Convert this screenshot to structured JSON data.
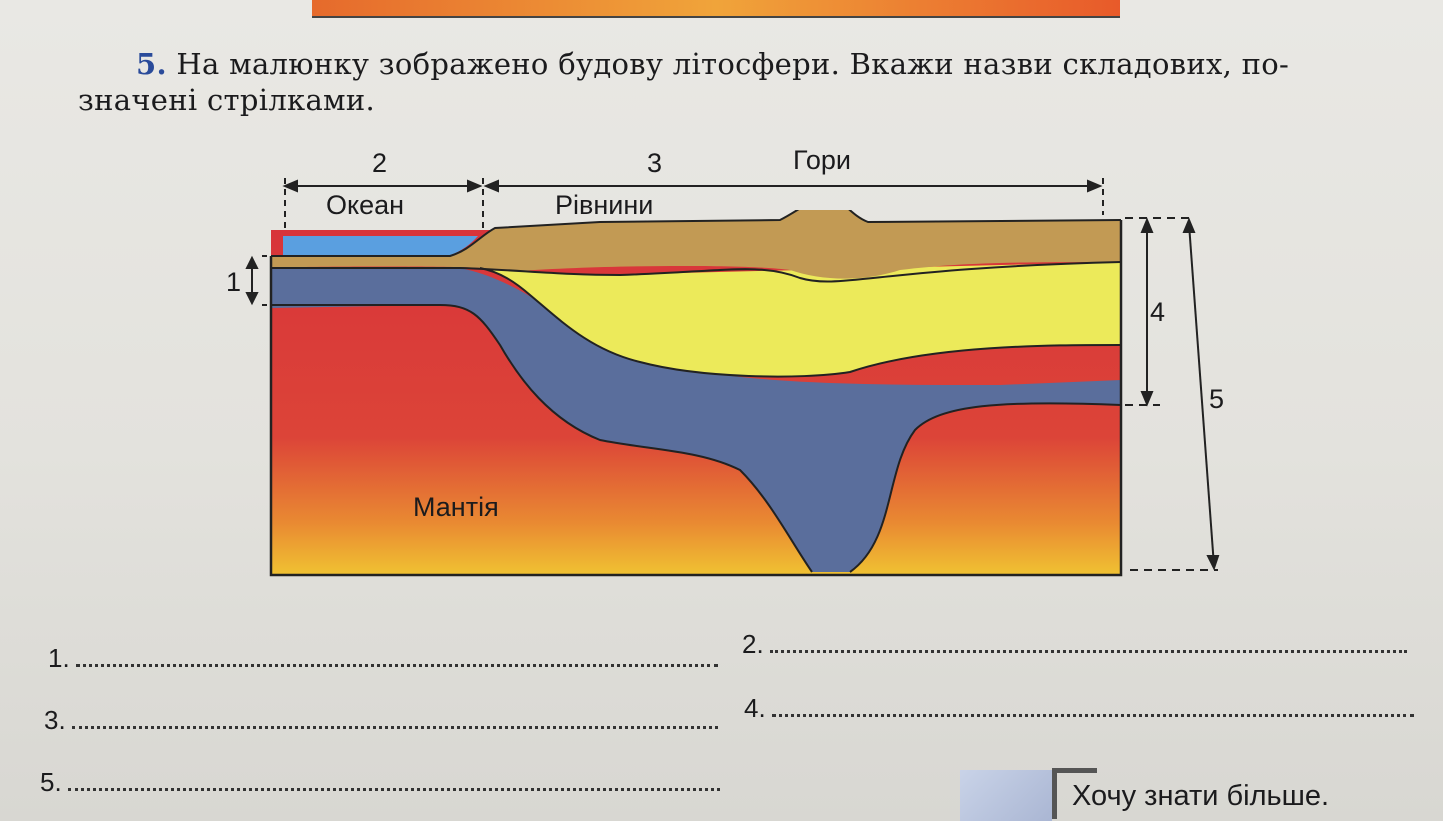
{
  "task": {
    "number": "5.",
    "line1": "На малюнку зображено будову літосфери. Вкажи назви складових, по-",
    "line2": "значені стрілками."
  },
  "diagram": {
    "label_2": "2",
    "label_3": "3",
    "label_mountains": "Гори",
    "label_ocean": "Океан",
    "label_plains": "Рівнини",
    "label_1": "1",
    "label_4": "4",
    "label_5": "5",
    "label_mantle": "Мантія"
  },
  "answers": [
    {
      "label": "1."
    },
    {
      "label": "2."
    },
    {
      "label": "3."
    },
    {
      "label": "4."
    },
    {
      "label": "5."
    }
  ],
  "more": {
    "label": "Хочу знати більше."
  }
}
